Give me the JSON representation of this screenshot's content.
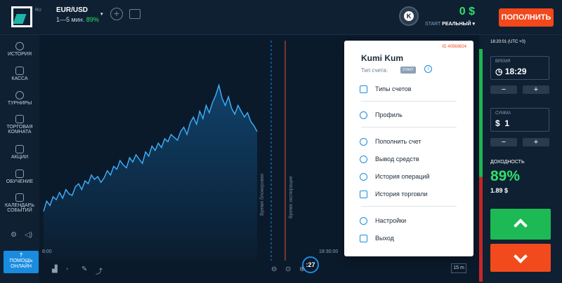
{
  "header": {
    "logo_suffix": "RU",
    "asset_name": "EUR/USD",
    "asset_timeframe": "1—5 мин.",
    "asset_payout": "89%",
    "avatar_letter": "K",
    "balance_amount": "0 $",
    "balance_type_prefix": "START",
    "balance_type": "РЕАЛЬНЫЙ ▾",
    "deposit_label": "ПОПОЛНИТЬ"
  },
  "sidebar": {
    "items": [
      {
        "label": "ИСТОРИЯ"
      },
      {
        "label": "КАССА"
      },
      {
        "label": "ТУРНИРЫ"
      },
      {
        "label": "ТОРГОВАЯ КОМНАТА"
      },
      {
        "label": "АКЦИИ"
      },
      {
        "label": "ОБУЧЕНИЕ"
      },
      {
        "label": "КАЛЕНДАРЬ СОБЫТИЙ"
      }
    ],
    "help_label": "ПОМОЩЬ ОНЛАЙН",
    "help_mark": "?"
  },
  "chart": {
    "time_left": "8:00",
    "time_right": "18:30:00",
    "purchase_line_label": "Время блокировки",
    "expiry_line_label": "Время экспирации",
    "timer": ":27",
    "timeframe_button": "15 m",
    "price_series": [
      0.05,
      0.12,
      0.09,
      0.15,
      0.13,
      0.18,
      0.14,
      0.2,
      0.17,
      0.16,
      0.22,
      0.24,
      0.2,
      0.26,
      0.24,
      0.3,
      0.27,
      0.29,
      0.25,
      0.28,
      0.33,
      0.3,
      0.36,
      0.34,
      0.4,
      0.37,
      0.35,
      0.42,
      0.39,
      0.44,
      0.41,
      0.38,
      0.46,
      0.43,
      0.5,
      0.47,
      0.52,
      0.49,
      0.55,
      0.53,
      0.58,
      0.56,
      0.54,
      0.6,
      0.63,
      0.58,
      0.66,
      0.7,
      0.65,
      0.74,
      0.69,
      0.78,
      0.73,
      0.8,
      0.85,
      0.92,
      0.83,
      0.78,
      0.84,
      0.76,
      0.72,
      0.78,
      0.74,
      0.7,
      0.73,
      0.67,
      0.64,
      0.6
    ]
  },
  "right_panel": {
    "clock": "18:20:01 (UTC +0)",
    "time_label": "ВРЕМЯ",
    "time_value": "18:29",
    "amount_label": "СУММА",
    "amount_value": "1",
    "amount_currency": "$",
    "minus": "−",
    "plus": "+",
    "yield_label": "ДОХОДНОСТЬ",
    "yield_pct": "89%",
    "yield_amount": "1.89 $"
  },
  "account_menu": {
    "id": "ID 40569824",
    "name": "Kumi Kum",
    "account_type_label": "Тип счета:",
    "account_type_badge": "START",
    "info_mark": "i",
    "items": [
      {
        "label": "Типы счетов"
      },
      {
        "label": "Профиль"
      },
      {
        "label": "Пополнить счет"
      },
      {
        "label": "Вывод средств"
      },
      {
        "label": "История операций"
      },
      {
        "label": "История торговли"
      },
      {
        "label": "Настройки"
      },
      {
        "label": "Выход"
      }
    ]
  },
  "colors": {
    "background": "#0b1a2b",
    "accent": "#1a8ce0",
    "up": "#1db954",
    "down": "#f24a1c",
    "positive_text": "#2ee06b"
  }
}
